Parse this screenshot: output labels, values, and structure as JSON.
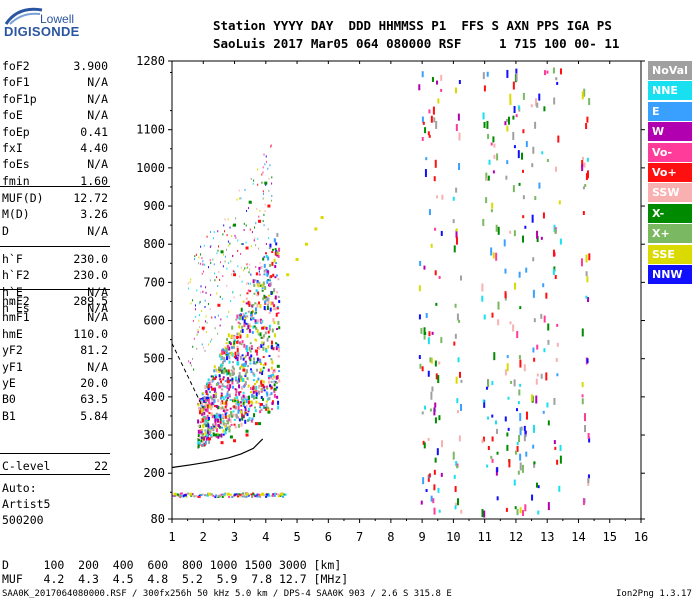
{
  "logo": {
    "top": "Lowell",
    "main": "DIGISONDE"
  },
  "header": {
    "line1": "Station YYYY DAY  DDD HHMMSS P1  FFS S AXN PPS IGA PS",
    "line2": "SaoLuis 2017 Mar05 064 080000 RSF     1 715 100 00- 11"
  },
  "params_group1": [
    {
      "label": "foF2",
      "value": "3.900"
    },
    {
      "label": "foF1",
      "value": "N/A"
    },
    {
      "label": "foF1p",
      "value": "N/A"
    },
    {
      "label": "foE",
      "value": "N/A"
    },
    {
      "label": "foEp",
      "value": "0.41"
    },
    {
      "label": "fxI",
      "value": "4.40"
    },
    {
      "label": "foEs",
      "value": "N/A"
    },
    {
      "label": "fmin",
      "value": "1.60"
    }
  ],
  "params_group2": [
    {
      "label": "MUF(D)",
      "value": "12.72"
    },
    {
      "label": "M(D)",
      "value": "3.26"
    },
    {
      "label": "D",
      "value": "N/A"
    }
  ],
  "params_group3": [
    {
      "label": "h`F",
      "value": "230.0"
    },
    {
      "label": "h`F2",
      "value": "230.0"
    },
    {
      "label": "h`E",
      "value": "N/A"
    },
    {
      "label": "h`Es",
      "value": "N/A"
    }
  ],
  "params_group4": [
    {
      "label": "hmF2",
      "value": "289.5"
    },
    {
      "label": "hmF1",
      "value": "N/A"
    },
    {
      "label": "hmE",
      "value": "110.0"
    },
    {
      "label": "yF2",
      "value": "81.2"
    },
    {
      "label": "yF1",
      "value": "N/A"
    },
    {
      "label": "yE",
      "value": "20.0"
    },
    {
      "label": "B0",
      "value": "63.5"
    },
    {
      "label": "B1",
      "value": "5.84"
    }
  ],
  "params_group5": [
    {
      "label": "C-level",
      "value": "22"
    }
  ],
  "autoscale": [
    "Auto:",
    "Artist5",
    "500200"
  ],
  "legend": [
    {
      "label": "NoVal",
      "color": "#a0a0a0"
    },
    {
      "label": "NNE",
      "color": "#19e0f0"
    },
    {
      "label": "E",
      "color": "#3aa0ff"
    },
    {
      "label": "W",
      "color": "#b000b0"
    },
    {
      "label": "Vo-",
      "color": "#ff3c9a"
    },
    {
      "label": "Vo+",
      "color": "#ff1010"
    },
    {
      "label": "SSW",
      "color": "#f8b0b0"
    },
    {
      "label": "X-",
      "color": "#008a00"
    },
    {
      "label": "X+",
      "color": "#7ab862"
    },
    {
      "label": "SSE",
      "color": "#dada00"
    },
    {
      "label": "NNW",
      "color": "#1010ff"
    }
  ],
  "bottom": {
    "d_line": "D     100  200  400  600  800 1000 1500 3000 [km]",
    "muf_line": "MUF   4.2  4.3  4.5  4.8  5.2  5.9  7.8 12.7 [MHz]"
  },
  "footer": {
    "left": "SAA0K_2017064080000.RSF / 300fx256h 50 kHz 5.0 km / DPS-4 SAA0K 903 / 2.6 S 315.8 E",
    "right": "Ion2Png 1.3.17"
  },
  "chart_data": {
    "type": "scatter",
    "title": "",
    "xlabel": "",
    "ylabel": "",
    "xlim": [
      1,
      16
    ],
    "ylim": [
      80,
      1280
    ],
    "x_ticks": [
      1,
      2,
      3,
      4,
      5,
      6,
      7,
      8,
      9,
      10,
      11,
      12,
      13,
      14,
      15,
      16
    ],
    "y_ticks": [
      80,
      200,
      300,
      400,
      500,
      600,
      700,
      800,
      900,
      1000,
      1100,
      1280
    ],
    "traces": [
      {
        "name": "O-trace F2",
        "color": "#ff1010",
        "points": [
          [
            2.2,
            290
          ],
          [
            2.6,
            280
          ],
          [
            3.0,
            285
          ],
          [
            3.4,
            300
          ],
          [
            3.7,
            330
          ],
          [
            3.85,
            380
          ],
          [
            3.9,
            430
          ]
        ]
      },
      {
        "name": "O-trace multi",
        "color": "#ff1010",
        "points": [
          [
            2.3,
            420
          ],
          [
            2.8,
            440
          ],
          [
            3.3,
            470
          ],
          [
            3.7,
            520
          ],
          [
            3.9,
            580
          ]
        ]
      },
      {
        "name": "X-trace",
        "color": "#008a00",
        "points": [
          [
            2.4,
            300
          ],
          [
            2.9,
            295
          ],
          [
            3.4,
            310
          ],
          [
            3.8,
            330
          ],
          [
            4.1,
            360
          ],
          [
            4.3,
            420
          ],
          [
            4.4,
            480
          ]
        ]
      },
      {
        "name": "Upper O",
        "color": "#ff1010",
        "points": [
          [
            2.0,
            580
          ],
          [
            2.5,
            640
          ],
          [
            3.0,
            720
          ],
          [
            3.4,
            790
          ],
          [
            3.8,
            860
          ],
          [
            4.1,
            900
          ]
        ]
      },
      {
        "name": "Upper X",
        "color": "#008a00",
        "points": [
          [
            2.6,
            780
          ],
          [
            3.0,
            850
          ],
          [
            3.5,
            910
          ],
          [
            4.0,
            960
          ]
        ]
      },
      {
        "name": "SSE spread",
        "color": "#dada00",
        "points": [
          [
            4.7,
            720
          ],
          [
            5.0,
            760
          ],
          [
            5.3,
            800
          ],
          [
            5.6,
            840
          ],
          [
            5.8,
            870
          ]
        ]
      },
      {
        "name": "E-layer",
        "color": "#dada00",
        "points": [
          [
            1.1,
            145
          ],
          [
            1.6,
            145
          ],
          [
            2.2,
            145
          ],
          [
            2.8,
            145
          ],
          [
            3.4,
            145
          ],
          [
            3.9,
            145
          ],
          [
            4.5,
            145
          ]
        ]
      }
    ],
    "model_profile": {
      "name": "profile",
      "color": "#000000",
      "points": [
        [
          1.0,
          215
        ],
        [
          1.6,
          222
        ],
        [
          2.2,
          230
        ],
        [
          2.8,
          240
        ],
        [
          3.2,
          250
        ],
        [
          3.6,
          265
        ],
        [
          3.9,
          290
        ]
      ]
    }
  }
}
